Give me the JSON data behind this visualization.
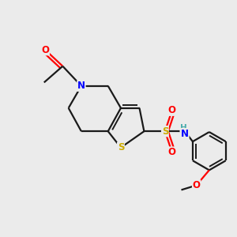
{
  "background_color": "#ebebeb",
  "bond_color": "#1a1a1a",
  "atom_colors": {
    "O": "#ff0000",
    "N": "#0000ff",
    "S_ring": "#ccaa00",
    "S_sul": "#ccaa00",
    "H": "#4aacac",
    "C": "#1a1a1a"
  },
  "figsize": [
    3.0,
    3.0
  ],
  "dpi": 100
}
